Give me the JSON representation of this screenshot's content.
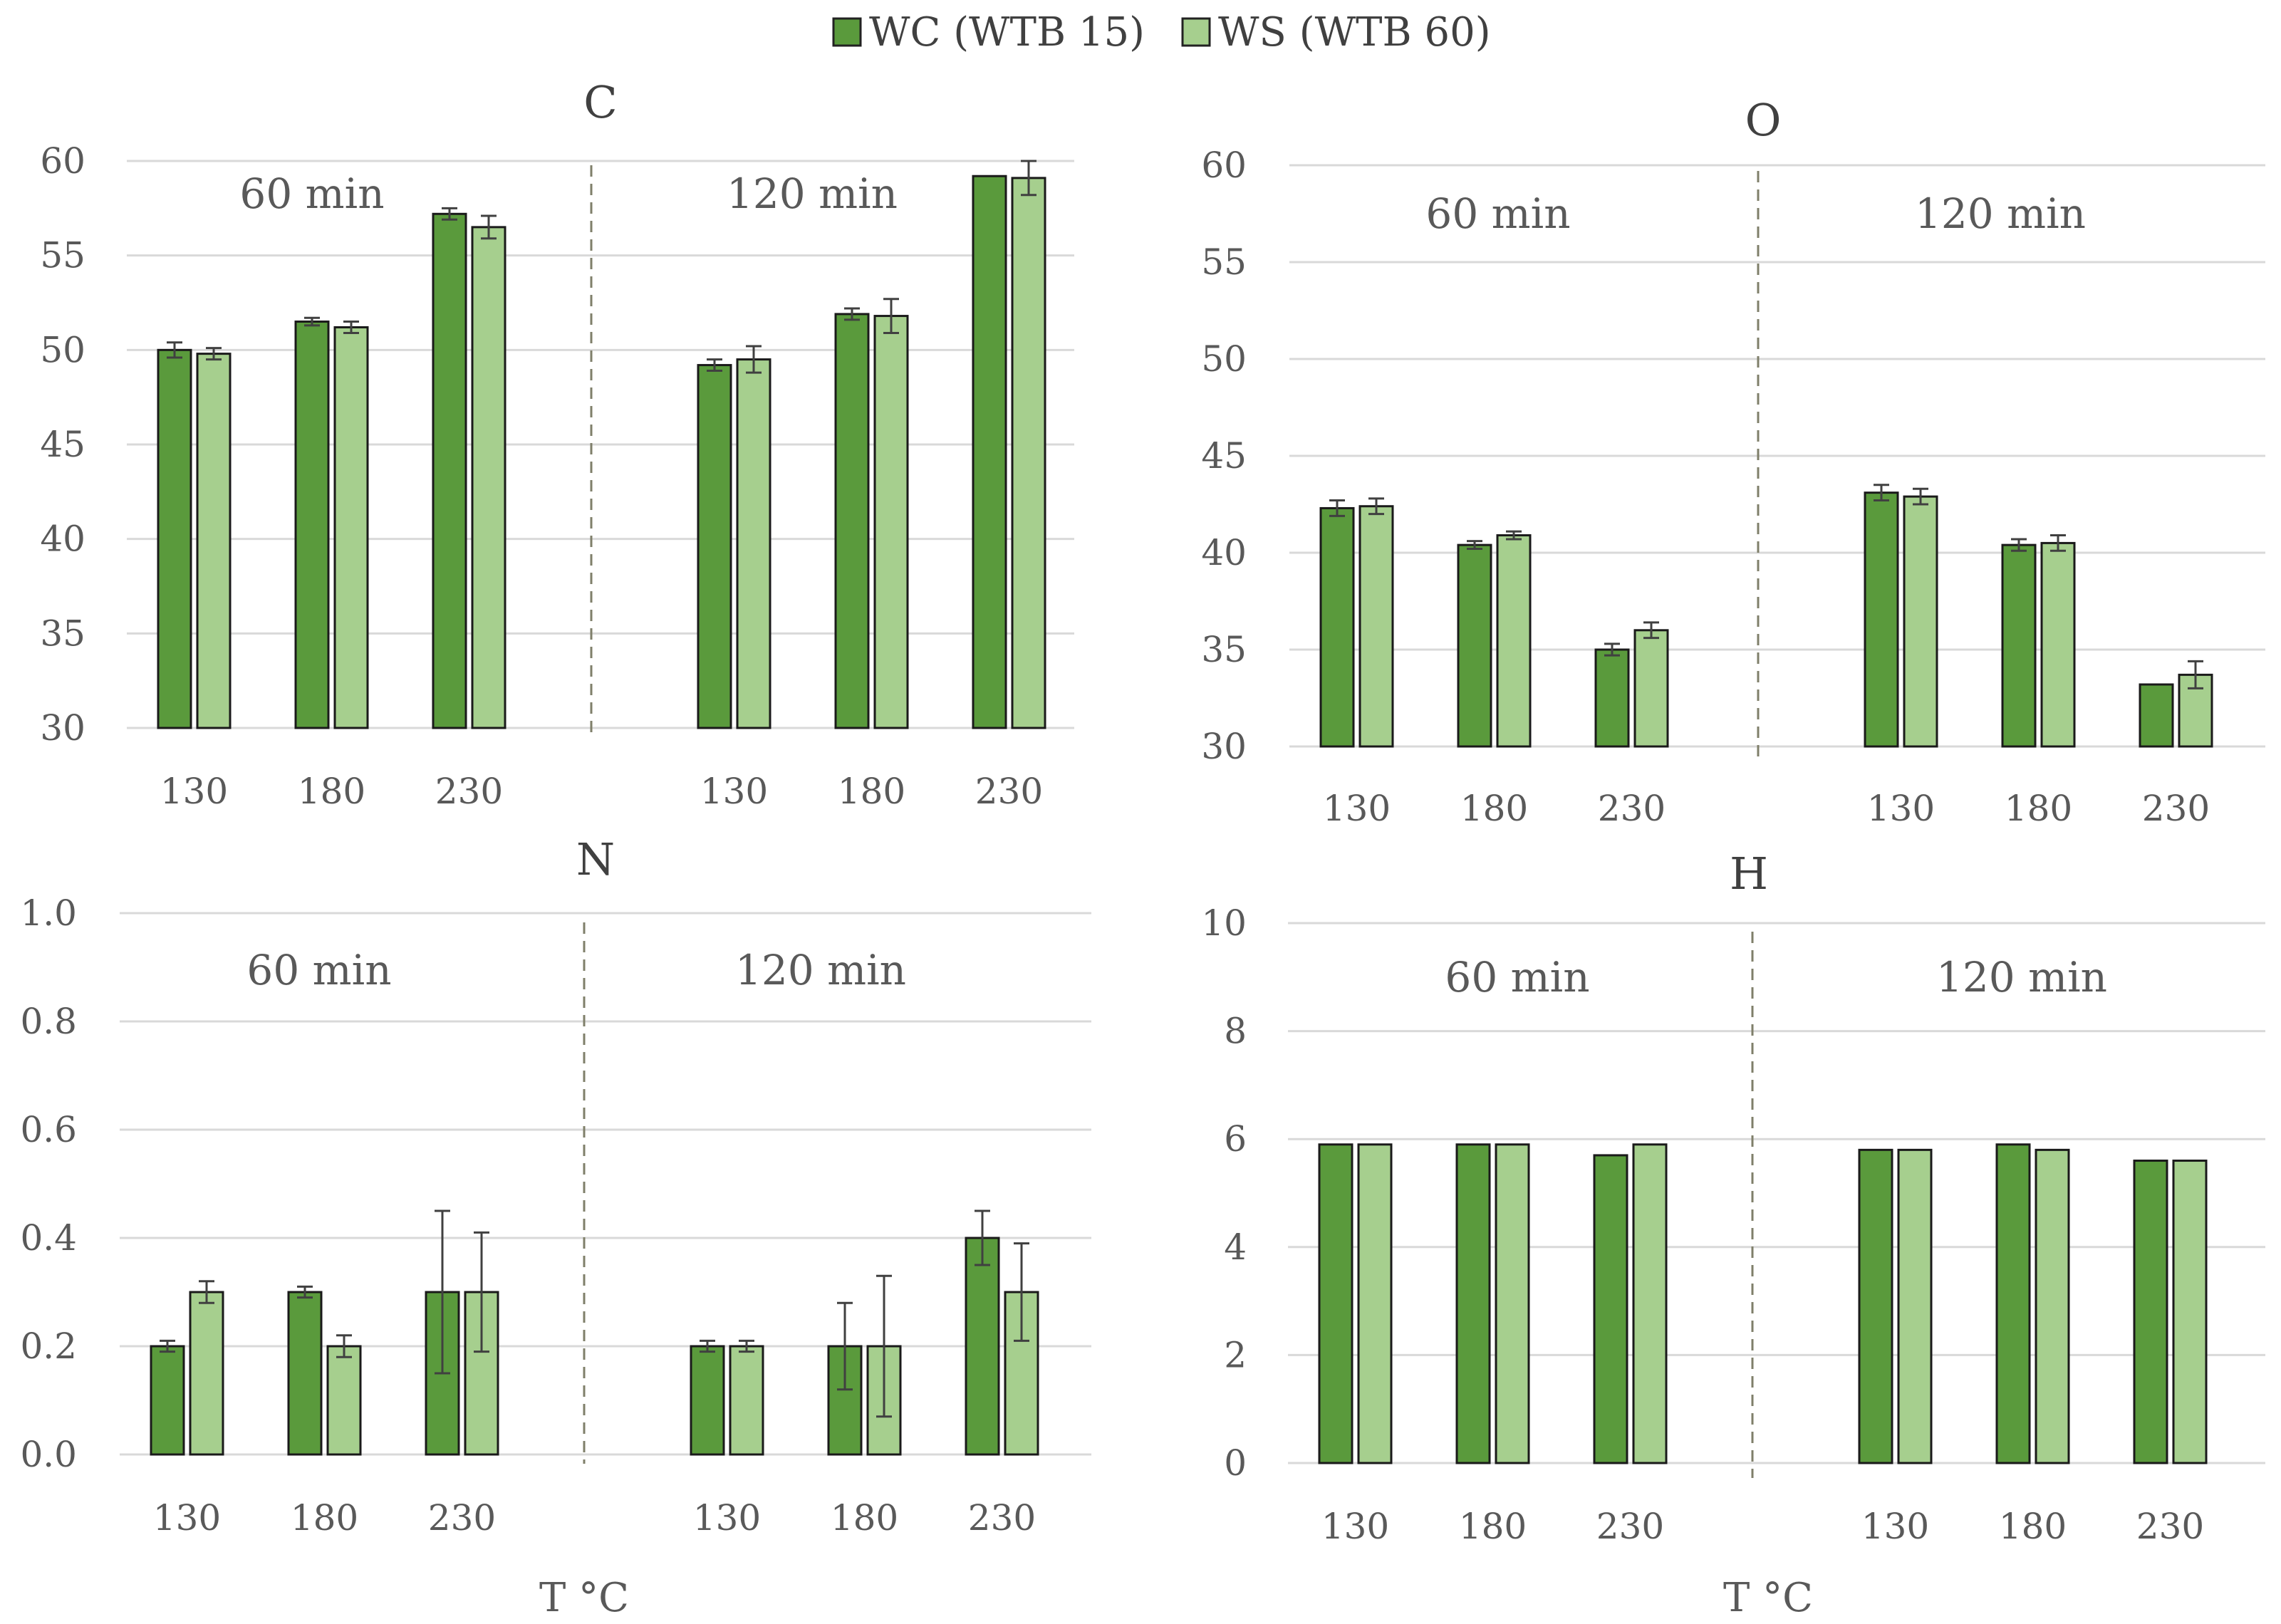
{
  "legend": [
    {
      "label": "WC (WTB 15)",
      "color": "#5a9a3c"
    },
    {
      "label": "WS (WTB 60)",
      "color": "#a6cf8e"
    }
  ],
  "xlabel": "T °C",
  "chart_data": [
    {
      "type": "bar",
      "title": "C",
      "groups": [
        "60 min",
        "120 min"
      ],
      "categories": [
        "130",
        "180",
        "230"
      ],
      "ylim": [
        30,
        60
      ],
      "yticks": [
        30,
        35,
        40,
        45,
        50,
        55,
        60
      ],
      "ytick_decimals": 0,
      "series": [
        {
          "name": "WC (WTB 15)",
          "values": [
            [
              50.0,
              51.5,
              57.2
            ],
            [
              49.2,
              51.9,
              59.2
            ]
          ],
          "errors": [
            [
              0.4,
              0.2,
              0.3
            ],
            [
              0.3,
              0.3,
              0.0
            ]
          ]
        },
        {
          "name": "WS (WTB 60)",
          "values": [
            [
              49.8,
              51.2,
              56.5
            ],
            [
              49.5,
              51.8,
              59.1
            ]
          ],
          "errors": [
            [
              0.3,
              0.3,
              0.6
            ],
            [
              0.7,
              0.9,
              0.9
            ]
          ]
        }
      ]
    },
    {
      "type": "bar",
      "title": "O",
      "groups": [
        "60 min",
        "120 min"
      ],
      "categories": [
        "130",
        "180",
        "230"
      ],
      "ylim": [
        30,
        60
      ],
      "yticks": [
        30,
        35,
        40,
        45,
        50,
        55,
        60
      ],
      "ytick_decimals": 0,
      "series": [
        {
          "name": "WC (WTB 15)",
          "values": [
            [
              42.3,
              40.4,
              35.0
            ],
            [
              43.1,
              40.4,
              33.2
            ]
          ],
          "errors": [
            [
              0.4,
              0.2,
              0.3
            ],
            [
              0.4,
              0.3,
              0.0
            ]
          ]
        },
        {
          "name": "WS (WTB 60)",
          "values": [
            [
              42.4,
              40.9,
              36.0
            ],
            [
              42.9,
              40.5,
              33.7
            ]
          ],
          "errors": [
            [
              0.4,
              0.2,
              0.4
            ],
            [
              0.4,
              0.4,
              0.7
            ]
          ]
        }
      ]
    },
    {
      "type": "bar",
      "title": "N",
      "groups": [
        "60 min",
        "120 min"
      ],
      "categories": [
        "130",
        "180",
        "230"
      ],
      "ylim": [
        0,
        1
      ],
      "yticks": [
        0,
        0.2,
        0.4,
        0.6,
        0.8,
        1.0
      ],
      "ytick_decimals": 1,
      "series": [
        {
          "name": "WC (WTB 15)",
          "values": [
            [
              0.2,
              0.3,
              0.3
            ],
            [
              0.2,
              0.2,
              0.4
            ]
          ],
          "errors": [
            [
              0.01,
              0.01,
              0.15
            ],
            [
              0.01,
              0.08,
              0.05
            ]
          ]
        },
        {
          "name": "WS (WTB 60)",
          "values": [
            [
              0.3,
              0.2,
              0.3
            ],
            [
              0.2,
              0.2,
              0.3
            ]
          ],
          "errors": [
            [
              0.02,
              0.02,
              0.11
            ],
            [
              0.01,
              0.13,
              0.09
            ]
          ]
        }
      ]
    },
    {
      "type": "bar",
      "title": "H",
      "groups": [
        "60 min",
        "120 min"
      ],
      "categories": [
        "130",
        "180",
        "230"
      ],
      "ylim": [
        0,
        10
      ],
      "yticks": [
        0,
        2,
        4,
        6,
        8,
        10
      ],
      "ytick_decimals": 0,
      "series": [
        {
          "name": "WC (WTB 15)",
          "values": [
            [
              5.9,
              5.9,
              5.7
            ],
            [
              5.8,
              5.9,
              5.6
            ]
          ],
          "errors": [
            [
              0,
              0,
              0
            ],
            [
              0,
              0,
              0
            ]
          ]
        },
        {
          "name": "WS (WTB 60)",
          "values": [
            [
              5.9,
              5.9,
              5.9
            ],
            [
              5.8,
              5.8,
              5.6
            ]
          ],
          "errors": [
            [
              0,
              0,
              0
            ],
            [
              0,
              0,
              0
            ]
          ]
        }
      ]
    }
  ]
}
